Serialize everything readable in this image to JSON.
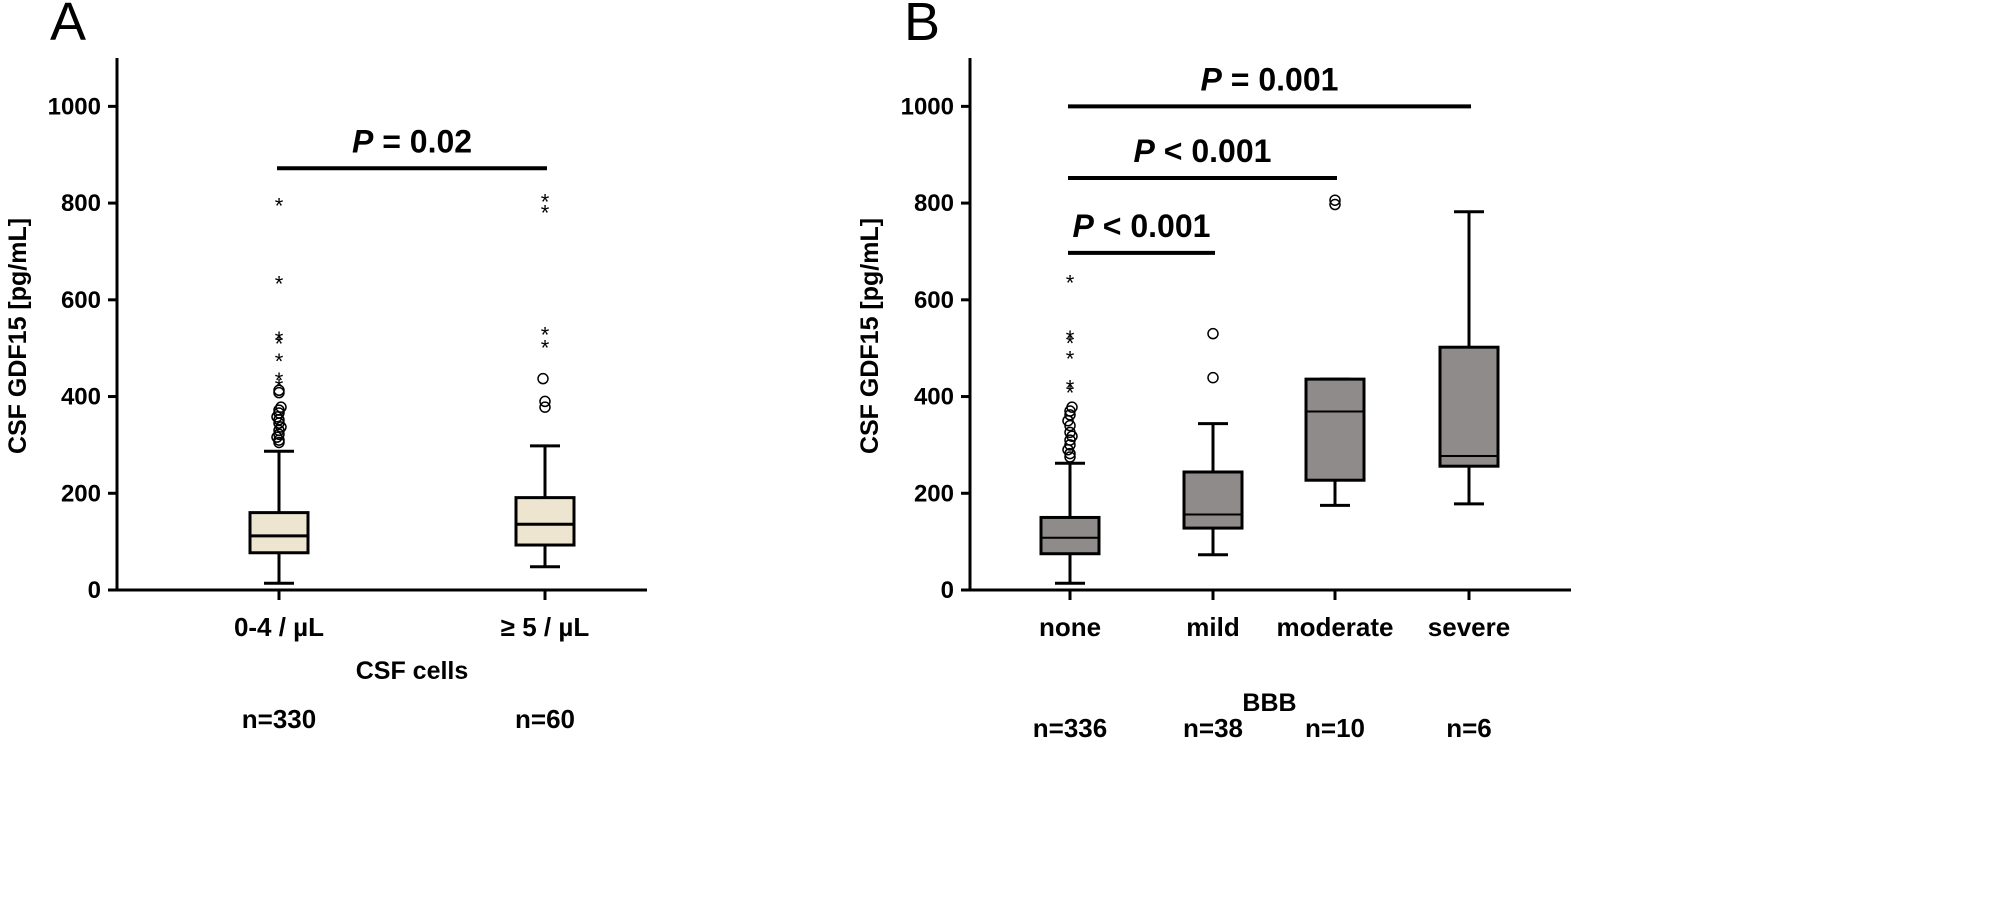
{
  "chart_data": [
    {
      "panel_label": "A",
      "type": "box",
      "ylabel": "CSF GDF15 [pg/mL]",
      "xlabel": "CSF cells",
      "ylim": [
        0,
        1100
      ],
      "yticks": [
        0,
        200,
        400,
        600,
        800,
        1000
      ],
      "ytick_labels": [
        "0",
        "200",
        "400",
        "600",
        "800",
        "1000"
      ],
      "box_color": "#ede5cf",
      "categories": [
        "0-4 / µL",
        "≥ 5 / µL"
      ],
      "n_labels": [
        "n=330",
        "n=60"
      ],
      "boxes": [
        {
          "whisker_low": 14,
          "q1": 77,
          "median": 112,
          "q3": 160,
          "whisker_high": 287,
          "outliers_circle": [
            305,
            310,
            316,
            322,
            330,
            337,
            345,
            352,
            358,
            366,
            372,
            378,
            408,
            413
          ],
          "outliers_star": [
            423,
            436,
            476,
            512,
            521,
            636,
            797
          ]
        },
        {
          "whisker_low": 48,
          "q1": 93,
          "median": 136,
          "q3": 191,
          "whisker_high": 298,
          "outliers_circle": [
            378,
            390,
            437
          ],
          "outliers_star": [
            503,
            530,
            783,
            805
          ]
        }
      ],
      "comparisons": [
        {
          "from": 0,
          "to": 1,
          "y": 872,
          "label_p": "P",
          "label_rest": " = 0.02"
        }
      ]
    },
    {
      "panel_label": "B",
      "type": "box",
      "ylabel": "CSF GDF15 [pg/mL]",
      "xlabel": "BBB",
      "ylim": [
        0,
        1100
      ],
      "yticks": [
        0,
        200,
        400,
        600,
        800,
        1000
      ],
      "ytick_labels": [
        "0",
        "200",
        "400",
        "600",
        "800",
        "1000"
      ],
      "box_color": "#8f8b8b",
      "categories": [
        "none",
        "mild",
        "moderate",
        "severe"
      ],
      "n_labels": [
        "n=336",
        "n=38",
        "n=10",
        "n=6"
      ],
      "boxes": [
        {
          "whisker_low": 14,
          "q1": 75,
          "median": 108,
          "q3": 150,
          "whisker_high": 262,
          "outliers_circle": [
            275,
            282,
            290,
            300,
            310,
            318,
            326,
            340,
            350,
            362,
            370,
            378
          ],
          "outliers_star": [
            410,
            421,
            481,
            513,
            523,
            638
          ]
        },
        {
          "whisker_low": 73,
          "q1": 128,
          "median": 156,
          "q3": 244,
          "whisker_high": 344,
          "outliers_circle": [
            439,
            530
          ],
          "outliers_star": []
        },
        {
          "whisker_low": 175,
          "q1": 227,
          "median": 369,
          "q3": 436,
          "whisker_high": 436,
          "outliers_circle": [
            797,
            806
          ],
          "outliers_star": []
        },
        {
          "whisker_low": 178,
          "q1": 256,
          "median": 277,
          "q3": 502,
          "whisker_high": 782,
          "outliers_circle": [],
          "outliers_star": []
        }
      ],
      "comparisons": [
        {
          "from": 0,
          "to": 1,
          "y": 697,
          "label_p": "P",
          "label_rest": " < 0.001"
        },
        {
          "from": 0,
          "to": 2,
          "y": 852,
          "label_p": "P",
          "label_rest": " < 0.001"
        },
        {
          "from": 0,
          "to": 3,
          "y": 1000,
          "label_p": "P",
          "label_rest": " = 0.001"
        }
      ]
    }
  ]
}
